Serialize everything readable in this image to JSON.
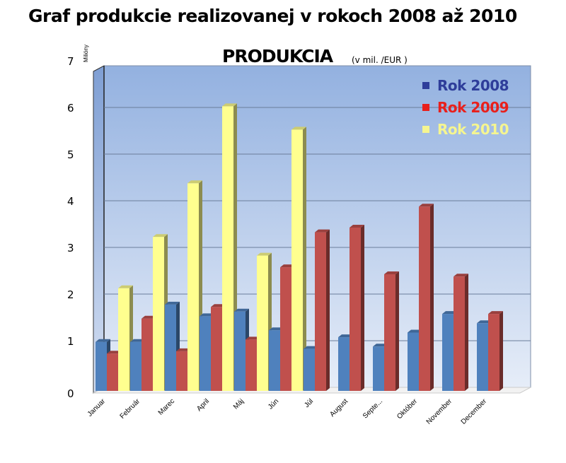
{
  "page_title": "Graf produkcie realizovanej v rokoch 2008 až 2010",
  "chart_data": {
    "type": "bar",
    "title": "PRODUKCIA",
    "subtitle": "(v mil. /EUR )",
    "ylabel": "Milióny",
    "xlabel": "",
    "ylim": [
      0,
      7
    ],
    "yticks": [
      "0",
      "1",
      "2",
      "3",
      "4",
      "5",
      "6",
      "7"
    ],
    "grid": true,
    "legend_position": "top-right",
    "categories": [
      "Januar",
      "Február",
      "Marec",
      "April",
      "Máj",
      "Jún",
      "Júl",
      "August",
      "Septe...",
      "Október",
      "November",
      "December"
    ],
    "series": [
      {
        "name": "Rok 2008",
        "color": "#4f81bd",
        "legend_color": "#2e3d9a",
        "values": [
          1.05,
          1.05,
          1.85,
          1.6,
          1.7,
          1.3,
          0.9,
          1.15,
          0.95,
          1.25,
          1.65,
          1.45
        ]
      },
      {
        "name": "Rok 2009",
        "color": "#c0504d",
        "legend_color": "#e8201c",
        "values": [
          0.8,
          1.55,
          0.85,
          1.8,
          1.1,
          2.65,
          3.4,
          3.5,
          2.5,
          3.95,
          2.45,
          1.65
        ]
      },
      {
        "name": "Rok 2010",
        "color": "#ffff8f",
        "legend_color": "#f5f590",
        "values": [
          2.2,
          3.3,
          4.45,
          6.1,
          2.9,
          5.6,
          null,
          null,
          null,
          null,
          null,
          null
        ]
      }
    ]
  }
}
